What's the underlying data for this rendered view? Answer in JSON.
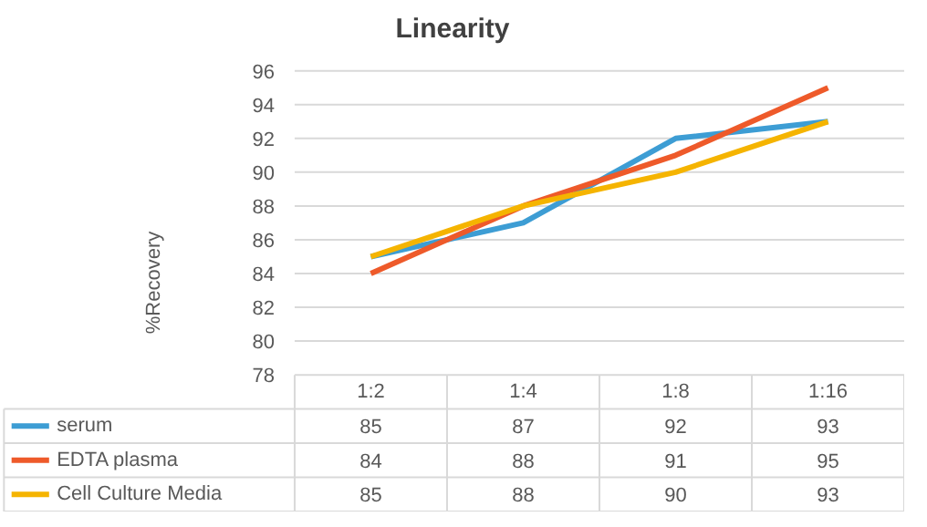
{
  "chart_data": {
    "type": "line",
    "title": "Linearity",
    "ylabel": "%Recovery",
    "categories": [
      "1:2",
      "1:4",
      "1:8",
      "1:16"
    ],
    "series": [
      {
        "name": "serum",
        "color": "#3d9dd4",
        "values": [
          85,
          87,
          92,
          93
        ]
      },
      {
        "name": "EDTA plasma",
        "color": "#ee5a2a",
        "values": [
          84,
          88,
          91,
          95
        ]
      },
      {
        "name": "Cell Culture Media",
        "color": "#f5b400",
        "values": [
          85,
          88,
          90,
          93
        ]
      }
    ],
    "ylim": [
      78,
      96
    ],
    "yticks": [
      78,
      80,
      82,
      84,
      86,
      88,
      90,
      92,
      94,
      96
    ],
    "grid": "y",
    "legend": "bottom",
    "data_labels": true,
    "marker": "none",
    "line_style": "solid"
  }
}
